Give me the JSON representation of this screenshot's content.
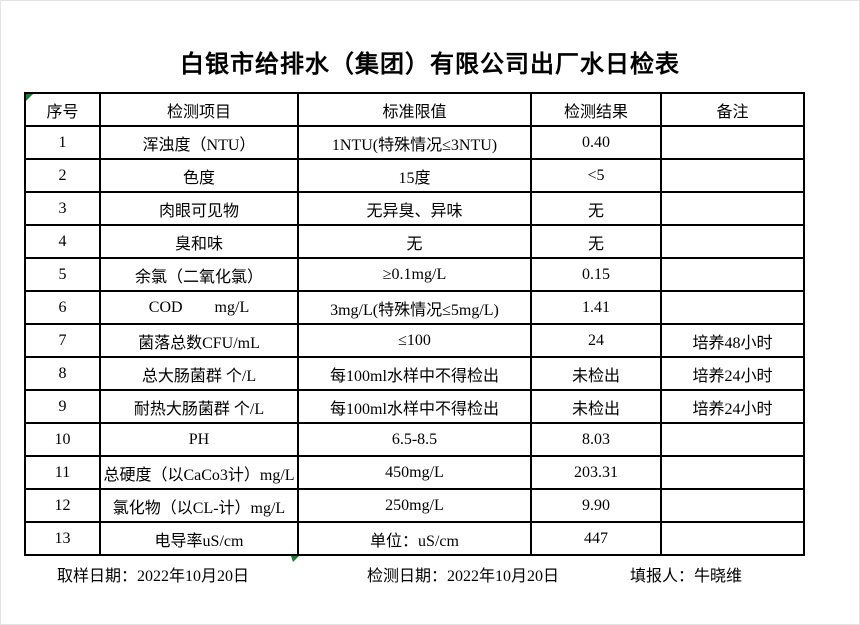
{
  "title": "白银市给排水（集团）有限公司出厂水日检表",
  "table": {
    "headers": [
      "序号",
      "检测项目",
      "标准限值",
      "检测结果",
      "备注"
    ],
    "rows": [
      {
        "no": "1",
        "item": "浑浊度（NTU）",
        "limit": "1NTU(特殊情况≤3NTU)",
        "result": "0.40",
        "remark": ""
      },
      {
        "no": "2",
        "item": "色度",
        "limit": "15度",
        "result": "<5",
        "remark": ""
      },
      {
        "no": "3",
        "item": "肉眼可见物",
        "limit": "无异臭、异味",
        "result": "无",
        "remark": ""
      },
      {
        "no": "4",
        "item": "臭和味",
        "limit": "无",
        "result": "无",
        "remark": ""
      },
      {
        "no": "5",
        "item": "余氯（二氧化氯）",
        "limit": "≥0.1mg/L",
        "result": "0.15",
        "remark": ""
      },
      {
        "no": "6",
        "item": "COD        mg/L",
        "limit": "3mg/L(特殊情况≤5mg/L)",
        "result": "1.41",
        "remark": ""
      },
      {
        "no": "7",
        "item": "菌落总数CFU/mL",
        "limit": "≤100",
        "result": "24",
        "remark": "培养48小时"
      },
      {
        "no": "8",
        "item": "总大肠菌群 个/L",
        "limit": "每100ml水样中不得检出",
        "result": "未检出",
        "remark": "培养24小时"
      },
      {
        "no": "9",
        "item": "耐热大肠菌群 个/L",
        "limit": "每100ml水样中不得检出",
        "result": "未检出",
        "remark": "培养24小时"
      },
      {
        "no": "10",
        "item": "PH",
        "limit": "6.5-8.5",
        "result": "8.03",
        "remark": ""
      },
      {
        "no": "11",
        "item": "总硬度（以CaCo3计）mg/L",
        "limit": "450mg/L",
        "result": "203.31",
        "remark": ""
      },
      {
        "no": "12",
        "item": "氯化物（以CL-计）mg/L",
        "limit": "250mg/L",
        "result": "9.90",
        "remark": ""
      },
      {
        "no": "13",
        "item": "电导率uS/cm",
        "limit": "单位：uS/cm",
        "result": "447",
        "remark": ""
      }
    ]
  },
  "footer": {
    "sampling_date": "取样日期：2022年10月20日",
    "test_date": "检测日期：2022年10月20日",
    "reporter": "填报人：牛晓维"
  },
  "colors": {
    "marker_green": "#1f7a33",
    "border": "#000000",
    "background": "#ffffff"
  }
}
